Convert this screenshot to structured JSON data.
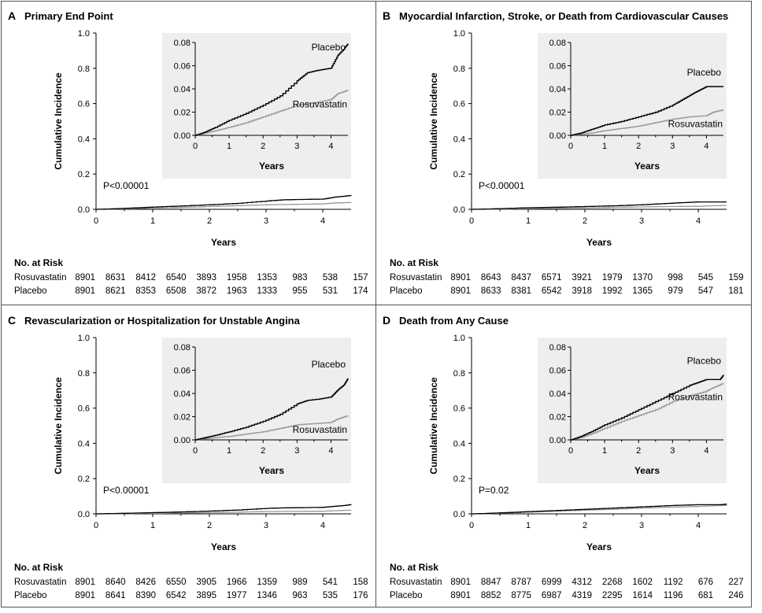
{
  "chart_data": [
    {
      "type": "line",
      "panel": "A",
      "title": "Primary End Point",
      "xlabel": "Years",
      "ylabel": "Cumulative Incidence",
      "xlim": [
        0,
        4.5
      ],
      "ylim": [
        0,
        1.0
      ],
      "xticks": [
        "0",
        "1",
        "2",
        "3",
        "4"
      ],
      "yticks": [
        "0.0",
        "0.2",
        "0.4",
        "0.6",
        "0.8",
        "1.0"
      ],
      "pvalue": "P<0.00001",
      "inset": {
        "xlabel": "Years",
        "xlim": [
          0,
          4.5
        ],
        "ylim": [
          0,
          0.08
        ],
        "xticks": [
          "0",
          "1",
          "2",
          "3",
          "4"
        ],
        "yticks": [
          "0.00",
          "0.02",
          "0.04",
          "0.06",
          "0.08"
        ],
        "labels": {
          "placebo": "Placebo",
          "rosuvastatin": "Rosuvastatin"
        }
      },
      "series": [
        {
          "name": "Placebo",
          "color": "#000000",
          "x": [
            0,
            0.3,
            0.6,
            1.0,
            1.5,
            2.0,
            2.5,
            3.0,
            3.3,
            3.6,
            4.0,
            4.2,
            4.4,
            4.5
          ],
          "y": [
            0,
            0.003,
            0.007,
            0.013,
            0.019,
            0.026,
            0.034,
            0.047,
            0.054,
            0.056,
            0.058,
            0.069,
            0.075,
            0.079
          ]
        },
        {
          "name": "Rosuvastatin",
          "color": "#999999",
          "x": [
            0,
            0.3,
            0.6,
            1.0,
            1.5,
            2.0,
            2.5,
            3.0,
            3.5,
            4.0,
            4.2,
            4.5
          ],
          "y": [
            0,
            0.002,
            0.004,
            0.007,
            0.011,
            0.016,
            0.021,
            0.026,
            0.028,
            0.031,
            0.036,
            0.039
          ]
        }
      ],
      "risk_table": {
        "header": "No. at Risk",
        "rows": [
          {
            "label": "Rosuvastatin",
            "values": [
              "8901",
              "8631",
              "8412",
              "6540",
              "3893",
              "1958",
              "1353",
              "983",
              "538",
              "157"
            ]
          },
          {
            "label": "Placebo",
            "values": [
              "8901",
              "8621",
              "8353",
              "6508",
              "3872",
              "1963",
              "1333",
              "955",
              "531",
              "174"
            ]
          }
        ]
      }
    },
    {
      "type": "line",
      "panel": "B",
      "title": "Myocardial Infarction, Stroke, or Death from Cardiovascular Causes",
      "xlabel": "Years",
      "ylabel": "Cumulative Incidence",
      "xlim": [
        0,
        4.5
      ],
      "ylim": [
        0,
        1.0
      ],
      "xticks": [
        "0",
        "1",
        "2",
        "3",
        "4"
      ],
      "yticks": [
        "0.0",
        "0.2",
        "0.4",
        "0.6",
        "0.8",
        "1.0"
      ],
      "pvalue": "P<0.00001",
      "inset": {
        "xlabel": "Years",
        "xlim": [
          0,
          4.5
        ],
        "ylim": [
          0,
          0.08
        ],
        "xticks": [
          "0",
          "1",
          "2",
          "3",
          "4"
        ],
        "yticks": [
          "0.00",
          "0.02",
          "0.04",
          "0.06",
          "0.08"
        ],
        "labels": {
          "placebo": "Placebo",
          "rosuvastatin": "Rosuvastatin"
        }
      },
      "series": [
        {
          "name": "Placebo",
          "color": "#000000",
          "x": [
            0,
            0.3,
            0.6,
            1.0,
            1.5,
            2.0,
            2.5,
            3.0,
            3.3,
            3.6,
            3.8,
            4.0,
            4.5
          ],
          "y": [
            0,
            0.002,
            0.005,
            0.009,
            0.012,
            0.016,
            0.02,
            0.026,
            0.031,
            0.036,
            0.039,
            0.042,
            0.042
          ]
        },
        {
          "name": "Rosuvastatin",
          "color": "#999999",
          "x": [
            0,
            0.3,
            0.6,
            1.0,
            1.5,
            2.0,
            2.5,
            3.0,
            3.5,
            4.0,
            4.2,
            4.5
          ],
          "y": [
            0,
            0.001,
            0.002,
            0.004,
            0.006,
            0.008,
            0.011,
            0.014,
            0.016,
            0.017,
            0.02,
            0.022
          ]
        }
      ],
      "risk_table": {
        "header": "No. at Risk",
        "rows": [
          {
            "label": "Rosuvastatin",
            "values": [
              "8901",
              "8643",
              "8437",
              "6571",
              "3921",
              "1979",
              "1370",
              "998",
              "545",
              "159"
            ]
          },
          {
            "label": "Placebo",
            "values": [
              "8901",
              "8633",
              "8381",
              "6542",
              "3918",
              "1992",
              "1365",
              "979",
              "547",
              "181"
            ]
          }
        ]
      }
    },
    {
      "type": "line",
      "panel": "C",
      "title": "Revascularization or Hospitalization for Unstable Angina",
      "xlabel": "Years",
      "ylabel": "Cumulative Incidence",
      "xlim": [
        0,
        4.5
      ],
      "ylim": [
        0,
        1.0
      ],
      "xticks": [
        "0",
        "1",
        "2",
        "3",
        "4"
      ],
      "yticks": [
        "0.0",
        "0.2",
        "0.4",
        "0.6",
        "0.8",
        "1.0"
      ],
      "pvalue": "P<0.00001",
      "inset": {
        "xlabel": "Years",
        "xlim": [
          0,
          4.5
        ],
        "ylim": [
          0,
          0.08
        ],
        "xticks": [
          "0",
          "1",
          "2",
          "3",
          "4"
        ],
        "yticks": [
          "0.00",
          "0.02",
          "0.04",
          "0.06",
          "0.08"
        ],
        "labels": {
          "placebo": "Placebo",
          "rosuvastatin": "Rosuvastatin"
        }
      },
      "series": [
        {
          "name": "Placebo",
          "color": "#000000",
          "x": [
            0,
            0.3,
            0.6,
            1.0,
            1.5,
            2.0,
            2.5,
            3.0,
            3.3,
            3.6,
            4.0,
            4.2,
            4.4,
            4.5
          ],
          "y": [
            0,
            0.002,
            0.004,
            0.007,
            0.011,
            0.016,
            0.022,
            0.031,
            0.034,
            0.035,
            0.037,
            0.043,
            0.048,
            0.053
          ]
        },
        {
          "name": "Rosuvastatin",
          "color": "#999999",
          "x": [
            0,
            0.3,
            0.6,
            1.0,
            1.5,
            2.0,
            2.5,
            3.0,
            3.5,
            4.0,
            4.2,
            4.5
          ],
          "y": [
            0,
            0.001,
            0.002,
            0.003,
            0.005,
            0.007,
            0.01,
            0.013,
            0.014,
            0.015,
            0.018,
            0.021
          ]
        }
      ],
      "risk_table": {
        "header": "No. at Risk",
        "rows": [
          {
            "label": "Rosuvastatin",
            "values": [
              "8901",
              "8640",
              "8426",
              "6550",
              "3905",
              "1966",
              "1359",
              "989",
              "541",
              "158"
            ]
          },
          {
            "label": "Placebo",
            "values": [
              "8901",
              "8641",
              "8390",
              "6542",
              "3895",
              "1977",
              "1346",
              "963",
              "535",
              "176"
            ]
          }
        ]
      }
    },
    {
      "type": "line",
      "panel": "D",
      "title": "Death from Any Cause",
      "xlabel": "Years",
      "ylabel": "Cumulative Incidence",
      "xlim": [
        0,
        4.5
      ],
      "ylim": [
        0,
        1.0
      ],
      "xticks": [
        "0",
        "1",
        "2",
        "3",
        "4"
      ],
      "yticks": [
        "0.0",
        "0.2",
        "0.4",
        "0.6",
        "0.8",
        "1.0"
      ],
      "pvalue": "P=0.02",
      "inset": {
        "xlabel": "Years",
        "xlim": [
          0,
          4.5
        ],
        "ylim": [
          0,
          0.08
        ],
        "xticks": [
          "0",
          "1",
          "2",
          "3",
          "4"
        ],
        "yticks": [
          "0.00",
          "0.02",
          "0.04",
          "0.06",
          "0.08"
        ],
        "labels": {
          "placebo": "Placebo",
          "rosuvastatin": "Rosuvastatin"
        }
      },
      "series": [
        {
          "name": "Placebo",
          "color": "#000000",
          "x": [
            0,
            0.3,
            0.6,
            1.0,
            1.5,
            2.0,
            2.5,
            3.0,
            3.5,
            3.8,
            4.0,
            4.2,
            4.4,
            4.5
          ],
          "y": [
            0,
            0.003,
            0.007,
            0.013,
            0.019,
            0.026,
            0.033,
            0.04,
            0.047,
            0.05,
            0.052,
            0.052,
            0.052,
            0.056
          ]
        },
        {
          "name": "Rosuvastatin",
          "color": "#999999",
          "x": [
            0,
            0.3,
            0.6,
            1.0,
            1.5,
            2.0,
            2.5,
            3.0,
            3.5,
            4.0,
            4.2,
            4.5
          ],
          "y": [
            0,
            0.002,
            0.005,
            0.01,
            0.016,
            0.021,
            0.026,
            0.033,
            0.038,
            0.042,
            0.045,
            0.049
          ]
        }
      ],
      "risk_table": {
        "header": "No. at Risk",
        "rows": [
          {
            "label": "Rosuvastatin",
            "values": [
              "8901",
              "8847",
              "8787",
              "6999",
              "4312",
              "2268",
              "1602",
              "1192",
              "676",
              "227"
            ]
          },
          {
            "label": "Placebo",
            "values": [
              "8901",
              "8852",
              "8775",
              "6987",
              "4319",
              "2295",
              "1614",
              "1196",
              "681",
              "246"
            ]
          }
        ]
      }
    }
  ]
}
